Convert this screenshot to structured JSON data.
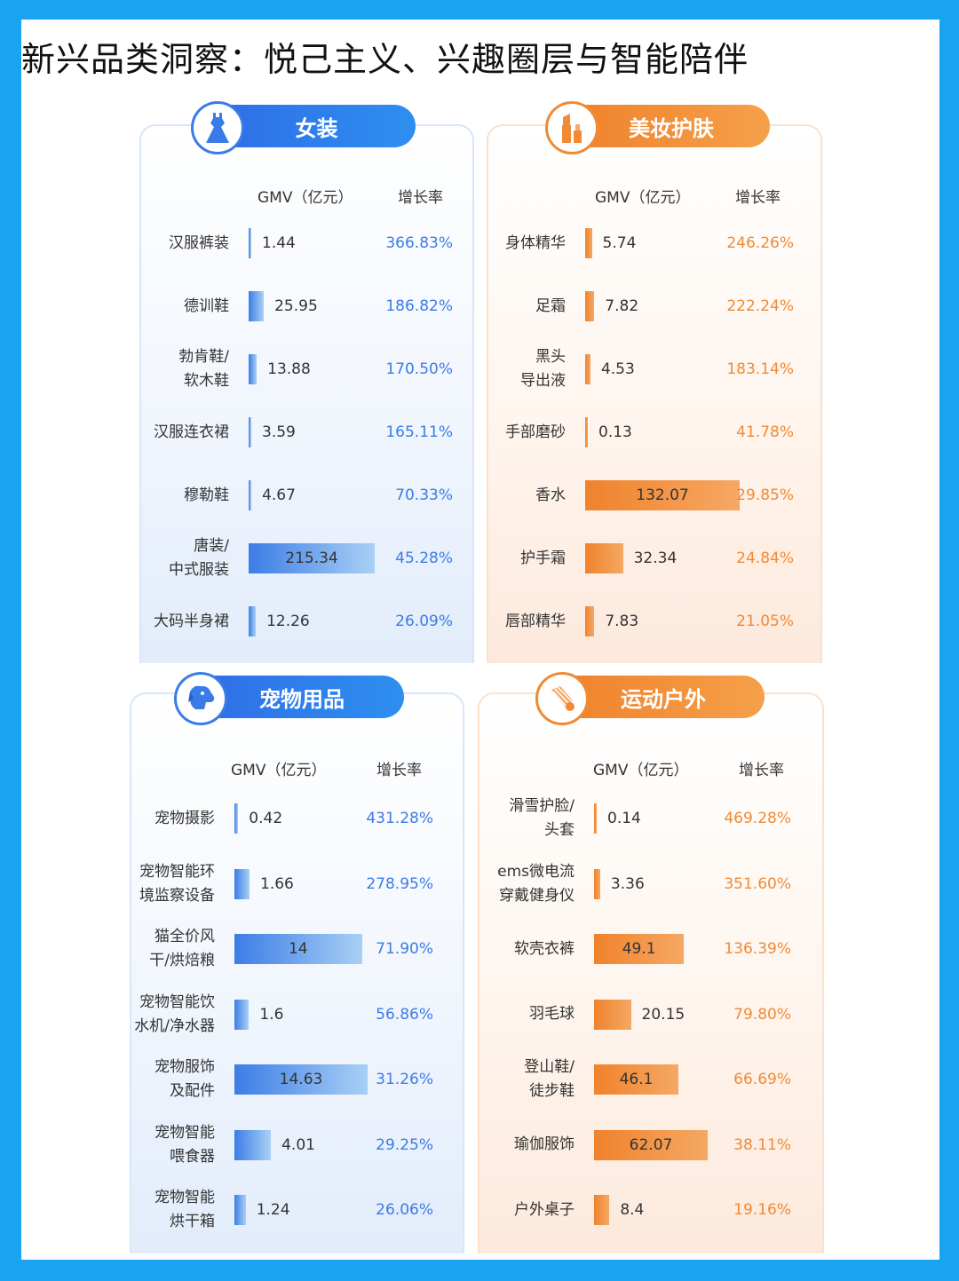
{
  "title": "新兴品类洞察：悦己主义、兴趣圈层与智能陪伴",
  "colors": {
    "frame": "#1aa3f0",
    "blue": "#3b7ce6",
    "orange": "#f08a34"
  },
  "chart_data": [
    {
      "type": "bar",
      "title": "女装",
      "icon": "dress-icon",
      "theme": "blue",
      "column_headers": {
        "value": "GMV（亿元）",
        "rate": "增长率"
      },
      "categories": [
        "汉服裤装",
        "德训鞋",
        "勃肯鞋/\n软木鞋",
        "汉服连衣裙",
        "穆勒鞋",
        "唐装/\n中式服装",
        "大码半身裙"
      ],
      "series": [
        {
          "name": "GMV（亿元）",
          "values": [
            1.44,
            25.95,
            13.88,
            3.59,
            4.67,
            215.34,
            12.26
          ]
        },
        {
          "name": "增长率",
          "values": [
            "366.83%",
            "186.82%",
            "170.50%",
            "165.11%",
            "70.33%",
            "45.28%",
            "26.09%"
          ]
        }
      ],
      "value_labels": [
        "1.44",
        "25.95",
        "13.88",
        "3.59",
        "4.67",
        "215.34",
        "12.26"
      ]
    },
    {
      "type": "bar",
      "title": "美妆护肤",
      "icon": "lipstick-icon",
      "theme": "orange",
      "column_headers": {
        "value": "GMV（亿元）",
        "rate": "增长率"
      },
      "categories": [
        "身体精华",
        "足霜",
        "黑头\n导出液",
        "手部磨砂",
        "香水",
        "护手霜",
        "唇部精华"
      ],
      "series": [
        {
          "name": "GMV（亿元）",
          "values": [
            5.74,
            7.82,
            4.53,
            0.13,
            132.07,
            32.34,
            7.83
          ]
        },
        {
          "name": "增长率",
          "values": [
            "246.26%",
            "222.24%",
            "183.14%",
            "41.78%",
            "29.85%",
            "24.84%",
            "21.05%"
          ]
        }
      ],
      "value_labels": [
        "5.74",
        "7.82",
        "4.53",
        "0.13",
        "132.07",
        "32.34",
        "7.83"
      ]
    },
    {
      "type": "bar",
      "title": "宠物用品",
      "icon": "dog-icon",
      "theme": "blue",
      "column_headers": {
        "value": "GMV（亿元）",
        "rate": "增长率"
      },
      "categories": [
        "宠物摄影",
        "宠物智能环\n境监察设备",
        "猫全价风\n干/烘焙粮",
        "宠物智能饮\n水机/净水器",
        "宠物服饰\n及配件",
        "宠物智能\n喂食器",
        "宠物智能\n烘干箱"
      ],
      "series": [
        {
          "name": "GMV（亿元）",
          "values": [
            0.42,
            1.66,
            14,
            1.6,
            14.63,
            4.01,
            1.24
          ]
        },
        {
          "name": "增长率",
          "values": [
            "431.28%",
            "278.95%",
            "71.90%",
            "56.86%",
            "31.26%",
            "29.25%",
            "26.06%"
          ]
        }
      ],
      "value_labels": [
        "0.42",
        "1.66",
        "14",
        "1.6",
        "14.63",
        "4.01",
        "1.24"
      ]
    },
    {
      "type": "bar",
      "title": "运动户外",
      "icon": "shuttlecock-icon",
      "theme": "orange",
      "column_headers": {
        "value": "GMV（亿元）",
        "rate": "增长率"
      },
      "categories": [
        "滑雪护脸/\n头套",
        "ems微电流\n穿戴健身仪",
        "软壳衣裤",
        "羽毛球",
        "登山鞋/\n徒步鞋",
        "瑜伽服饰",
        "户外桌子"
      ],
      "series": [
        {
          "name": "GMV（亿元）",
          "values": [
            0.14,
            3.36,
            49.1,
            20.15,
            46.1,
            62.07,
            8.4
          ]
        },
        {
          "name": "增长率",
          "values": [
            "469.28%",
            "351.60%",
            "136.39%",
            "79.80%",
            "66.69%",
            "38.11%",
            "19.16%"
          ]
        }
      ],
      "value_labels": [
        "0.14",
        "3.36",
        "49.1",
        "20.15",
        "46.1",
        "62.07",
        "8.4"
      ]
    }
  ]
}
